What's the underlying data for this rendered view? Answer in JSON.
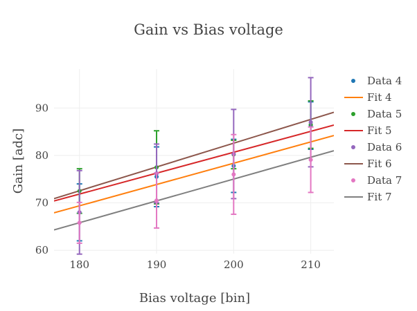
{
  "chart_data": {
    "type": "scatter",
    "title": "Gain vs Bias voltage",
    "xlabel": "Bias voltage [bin]",
    "ylabel": "Gain [adc]",
    "xlim": [
      176.7,
      213
    ],
    "ylim": [
      59.3,
      98.2
    ],
    "xticks": [
      180,
      190,
      200,
      210
    ],
    "yticks": [
      60,
      70,
      80,
      90
    ],
    "grid": true,
    "legend_position": "right",
    "series": [
      {
        "name": "Data 4",
        "kind": "points",
        "color": "#1f77b4",
        "x": [
          180,
          190,
          200,
          210
        ],
        "y": [
          68,
          75.5,
          77.8,
          86.3
        ],
        "err": [
          6,
          6.3,
          5.6,
          5
        ]
      },
      {
        "name": "Fit 4",
        "kind": "line",
        "color": "#ff7f0e",
        "x": [
          176.7,
          213
        ],
        "y": [
          67.9,
          84.2
        ]
      },
      {
        "name": "Data 5",
        "kind": "points",
        "color": "#2ca02c",
        "x": [
          180,
          190,
          200,
          210
        ],
        "y": [
          72.5,
          77.5,
          80.2,
          86.5
        ],
        "err": [
          4.7,
          7.7,
          3,
          5
        ]
      },
      {
        "name": "Fit 5",
        "kind": "line",
        "color": "#d62728",
        "x": [
          176.7,
          213
        ],
        "y": [
          70.4,
          86.4
        ]
      },
      {
        "name": "Data 6",
        "kind": "points",
        "color": "#9467bd",
        "x": [
          180,
          190,
          200,
          210
        ],
        "y": [
          68,
          76.2,
          80.3,
          87
        ],
        "err": [
          8.8,
          6.2,
          9.4,
          9.4
        ]
      },
      {
        "name": "Fit 6",
        "kind": "line",
        "color": "#8c564b",
        "x": [
          176.7,
          213
        ],
        "y": [
          70.9,
          89.1
        ]
      },
      {
        "name": "Data 7",
        "kind": "points",
        "color": "#e377c2",
        "x": [
          180,
          190,
          200,
          210
        ],
        "y": [
          65.8,
          70.5,
          76,
          79.1
        ],
        "err": [
          4.3,
          5.8,
          8.4,
          6.9
        ]
      },
      {
        "name": "Fit 7",
        "kind": "line",
        "color": "#7f7f7f",
        "x": [
          176.7,
          213
        ],
        "y": [
          64.3,
          81.0
        ]
      }
    ]
  }
}
